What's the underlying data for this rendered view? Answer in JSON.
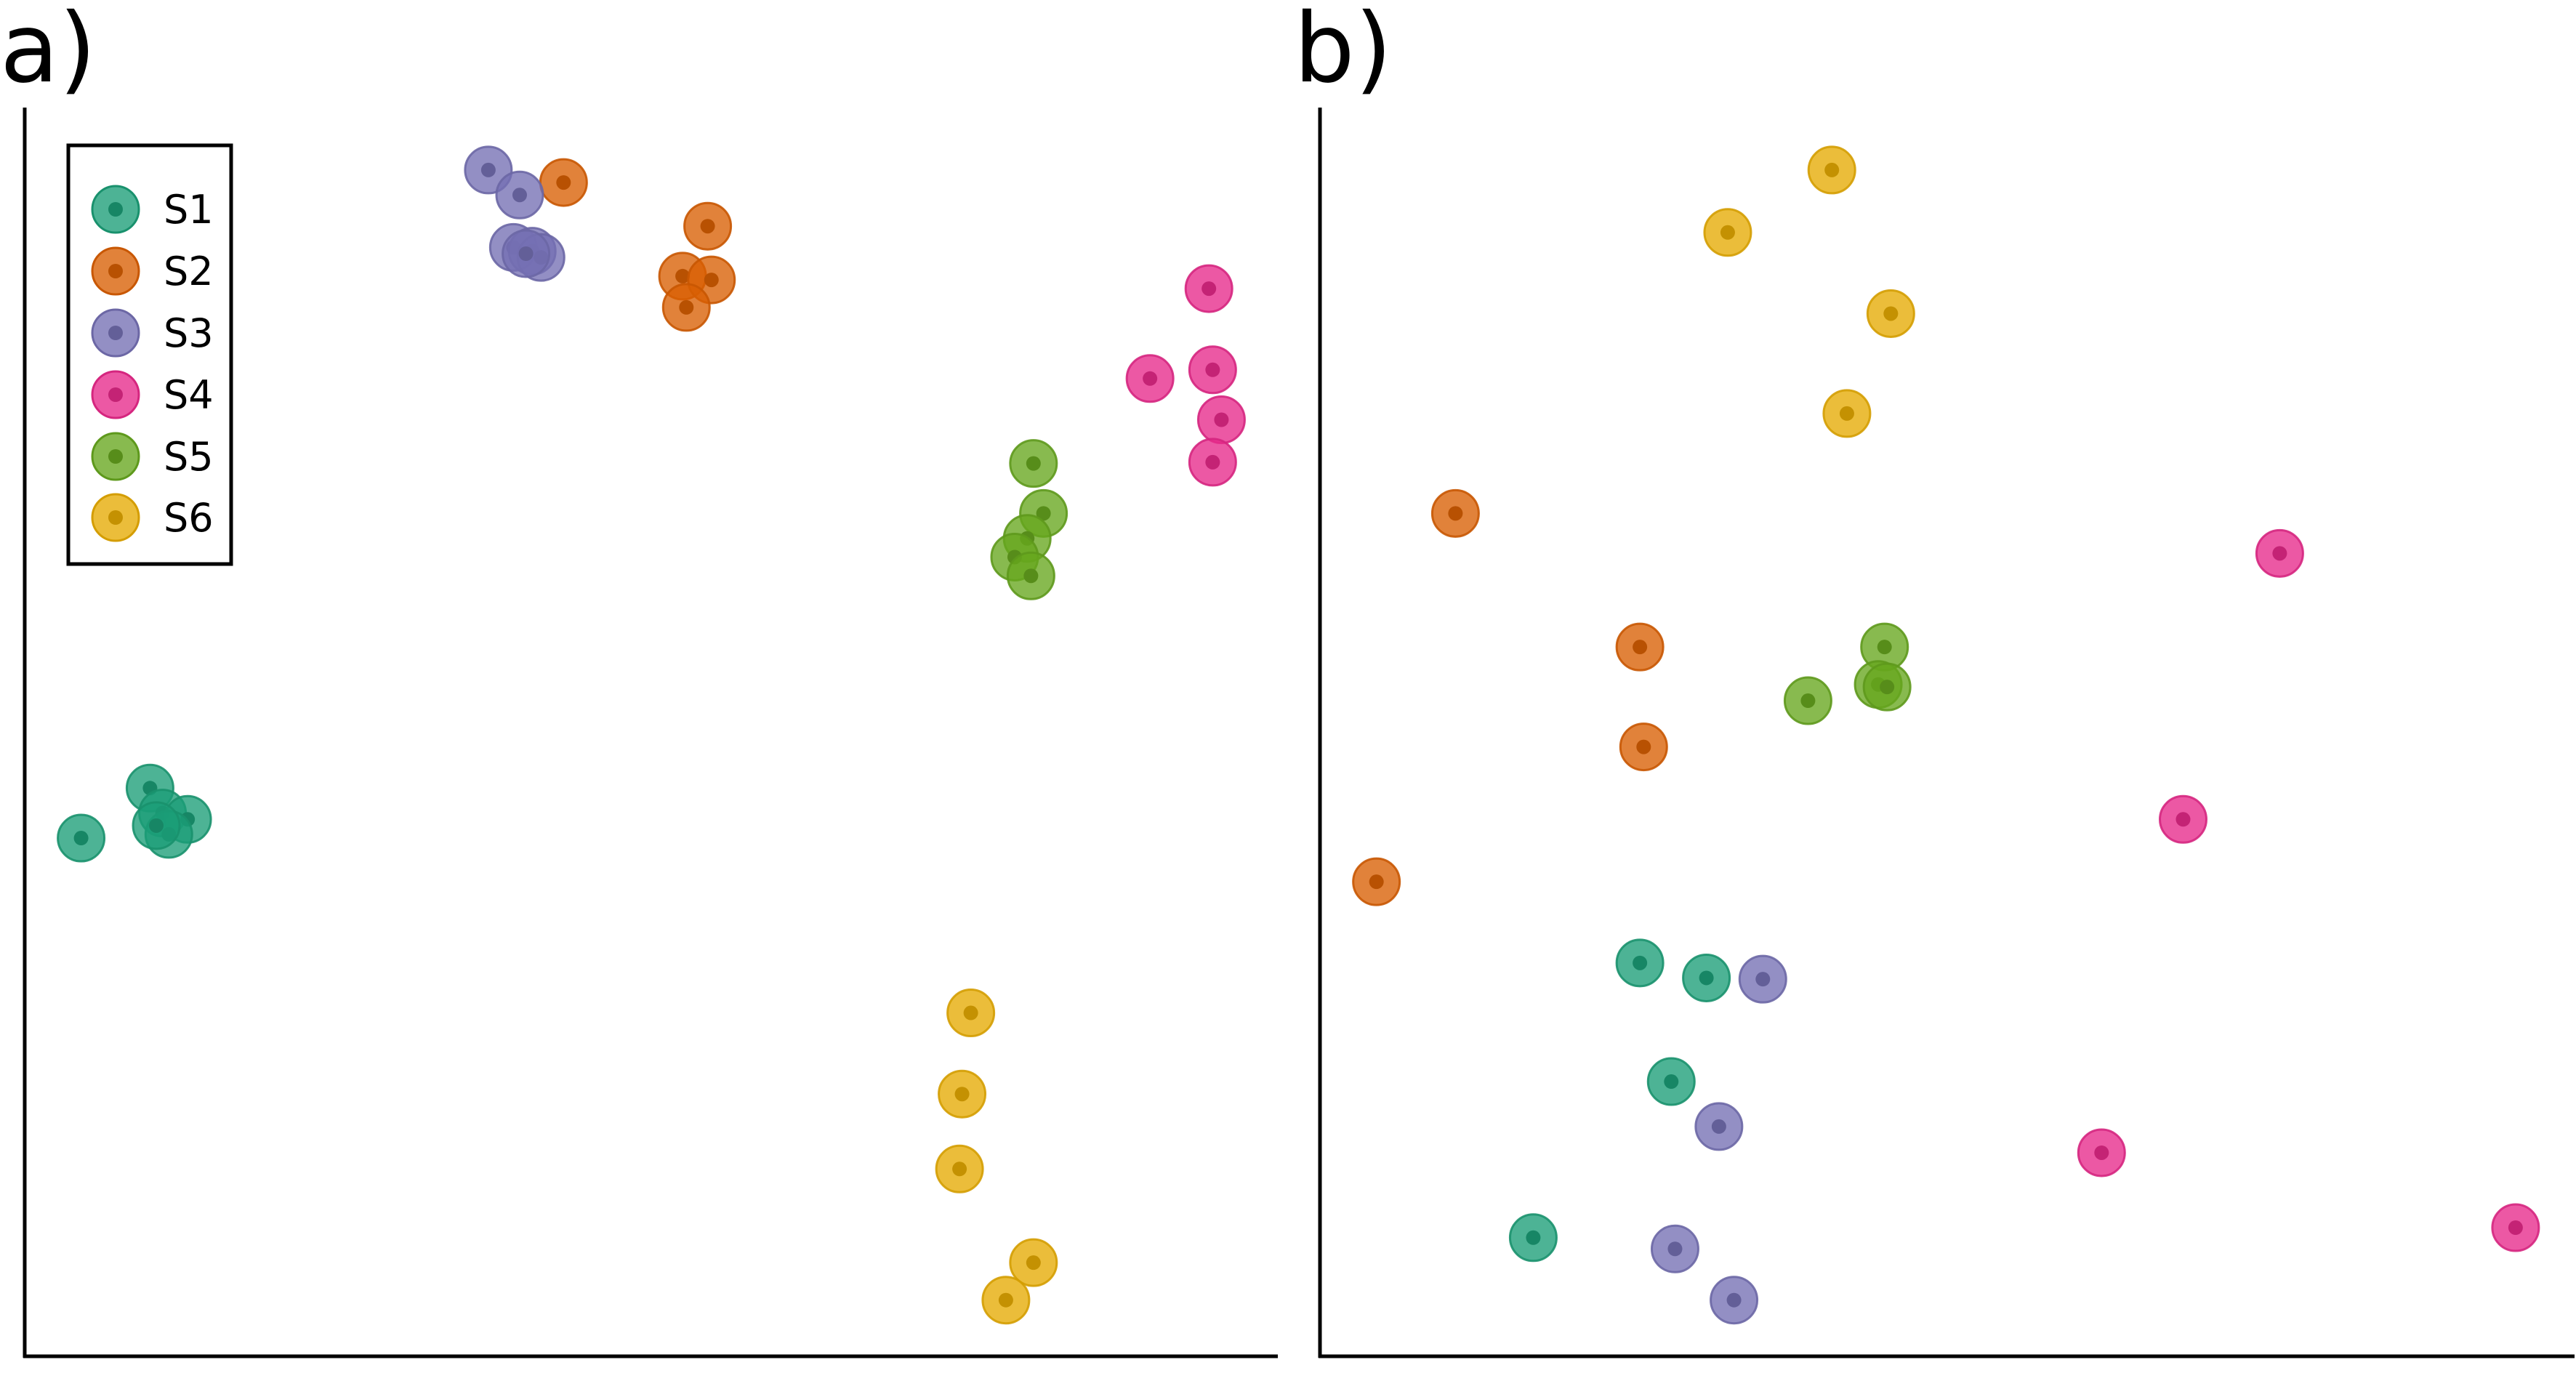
{
  "chart_data": [
    {
      "type": "scatter",
      "panel_label": "a)",
      "axes_visible": "left and bottom spines only, no ticks",
      "grid": false,
      "legend": {
        "placement": "top-left",
        "entries": [
          {
            "name": "S1",
            "color": "#1b9e77"
          },
          {
            "name": "S2",
            "color": "#d95f02"
          },
          {
            "name": "S3",
            "color": "#7570b3"
          },
          {
            "name": "S4",
            "color": "#e7298a"
          },
          {
            "name": "S5",
            "color": "#66a61e"
          },
          {
            "name": "S6",
            "color": "#e6ab02"
          }
        ]
      },
      "xlim": [
        0,
        100
      ],
      "ylim": [
        0,
        100
      ],
      "series": [
        {
          "name": "S1",
          "color": "#1b9e77",
          "points": [
            [
              4.5,
              41.5
            ],
            [
              10,
              45.5
            ],
            [
              11,
              43.5
            ],
            [
              13,
              43
            ],
            [
              11.5,
              41.8
            ],
            [
              10.5,
              42.5
            ]
          ]
        },
        {
          "name": "S2",
          "color": "#d95f02",
          "points": [
            [
              43,
              94
            ],
            [
              54.5,
              90.5
            ],
            [
              52.5,
              86.5
            ],
            [
              54.8,
              86.2
            ],
            [
              52.8,
              84
            ]
          ]
        },
        {
          "name": "S3",
          "color": "#7570b3",
          "points": [
            [
              37,
              95
            ],
            [
              39.5,
              93
            ],
            [
              39,
              88.8
            ],
            [
              40.5,
              88.5
            ],
            [
              41.2,
              88
            ],
            [
              40,
              88.3
            ]
          ]
        },
        {
          "name": "S4",
          "color": "#e7298a",
          "points": [
            [
              94.5,
              85.5
            ],
            [
              94.8,
              79
            ],
            [
              89.8,
              78.3
            ],
            [
              95.5,
              75
            ],
            [
              94.8,
              71.6
            ]
          ]
        },
        {
          "name": "S5",
          "color": "#66a61e",
          "points": [
            [
              80.5,
              71.5
            ],
            [
              81.3,
              67.5
            ],
            [
              80,
              65.5
            ],
            [
              79,
              64
            ],
            [
              80.3,
              62.5
            ]
          ]
        },
        {
          "name": "S6",
          "color": "#e6ab02",
          "points": [
            [
              75.5,
              27.5
            ],
            [
              74.8,
              21
            ],
            [
              74.6,
              15
            ],
            [
              80.5,
              7.5
            ],
            [
              78.3,
              4.5
            ]
          ]
        }
      ]
    },
    {
      "type": "scatter",
      "panel_label": "b)",
      "axes_visible": "left and bottom spines only, no ticks",
      "grid": false,
      "xlim": [
        0,
        100
      ],
      "ylim": [
        0,
        100
      ],
      "series": [
        {
          "name": "S1",
          "color": "#1b9e77",
          "points": [
            [
              25.5,
              31.5
            ],
            [
              30.8,
              30.3
            ],
            [
              28,
              22
            ],
            [
              17,
              9.5
            ]
          ]
        },
        {
          "name": "S2",
          "color": "#d95f02",
          "points": [
            [
              10.8,
              67.5
            ],
            [
              25.5,
              56.8
            ],
            [
              25.8,
              48.8
            ],
            [
              4.5,
              38
            ]
          ]
        },
        {
          "name": "S3",
          "color": "#7570b3",
          "points": [
            [
              35.3,
              30.2
            ],
            [
              31.8,
              18.4
            ],
            [
              28.3,
              8.6
            ],
            [
              33,
              4.5
            ]
          ]
        },
        {
          "name": "S4",
          "color": "#e7298a",
          "points": [
            [
              76.5,
              64.3
            ],
            [
              68.8,
              43
            ],
            [
              62.3,
              16.3
            ],
            [
              95.3,
              10.3
            ]
          ]
        },
        {
          "name": "S5",
          "color": "#66a61e",
          "points": [
            [
              45,
              56.8
            ],
            [
              38.9,
              52.5
            ],
            [
              44.5,
              53.8
            ],
            [
              45.2,
              53.6
            ]
          ]
        },
        {
          "name": "S6",
          "color": "#e6ab02",
          "points": [
            [
              40.8,
              95
            ],
            [
              32.5,
              90
            ],
            [
              45.5,
              83.5
            ],
            [
              42,
              75.5
            ]
          ]
        }
      ]
    }
  ]
}
